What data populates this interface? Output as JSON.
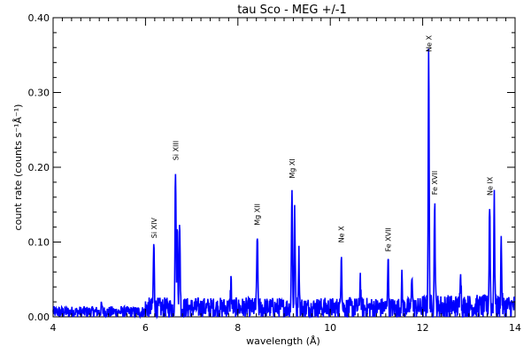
{
  "chart_data": {
    "type": "line",
    "title": "tau Sco - MEG +/-1",
    "xlabel": "wavelength (Å)",
    "ylabel": "count rate (counts s⁻¹Å⁻¹)",
    "xlim": [
      4,
      14
    ],
    "ylim": [
      0,
      0.4
    ],
    "x_ticks": [
      "4",
      "6",
      "8",
      "10",
      "12",
      "14"
    ],
    "y_ticks": [
      "0.00",
      "0.10",
      "0.20",
      "0.30",
      "0.40"
    ],
    "grid": false,
    "series_color": "#0000ff",
    "baseline": 0.012,
    "noise": 0.014,
    "lines": [
      {
        "label": "Si XIV",
        "x": 6.18,
        "y": 0.098
      },
      {
        "label": "Si XIII",
        "x": 6.65,
        "y": 0.202
      },
      {
        "label": "Mg XII",
        "x": 8.42,
        "y": 0.115
      },
      {
        "label": "Mg XI",
        "x": 9.17,
        "y": 0.178
      },
      {
        "label": "Ne X",
        "x": 10.24,
        "y": 0.092
      },
      {
        "label": "Fe XVII",
        "x": 11.25,
        "y": 0.08
      },
      {
        "label": "Ne X",
        "x": 12.13,
        "y": 0.347
      },
      {
        "label": "Fe XVII",
        "x": 12.26,
        "y": 0.156
      },
      {
        "label": "Ne IX",
        "x": 13.45,
        "y": 0.155
      }
    ],
    "extra_peaks": [
      {
        "x": 6.74,
        "y": 0.128
      },
      {
        "x": 6.69,
        "y": 0.12
      },
      {
        "x": 9.23,
        "y": 0.14
      },
      {
        "x": 9.32,
        "y": 0.085
      },
      {
        "x": 13.55,
        "y": 0.153
      },
      {
        "x": 13.7,
        "y": 0.1
      },
      {
        "x": 12.82,
        "y": 0.07
      },
      {
        "x": 7.85,
        "y": 0.05
      },
      {
        "x": 10.65,
        "y": 0.055
      },
      {
        "x": 11.55,
        "y": 0.05
      },
      {
        "x": 11.77,
        "y": 0.06
      },
      {
        "x": 5.05,
        "y": 0.02
      }
    ]
  }
}
